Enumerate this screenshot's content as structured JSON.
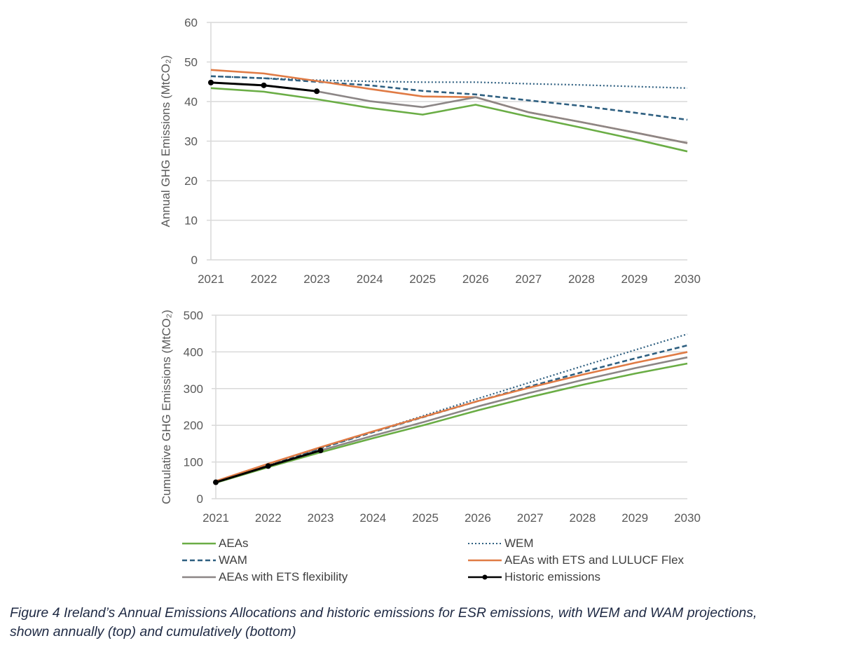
{
  "chart_data": [
    {
      "type": "line",
      "title": "",
      "xlabel": "",
      "ylabel": "Annual GHG Emissions (MtCO₂)",
      "x": [
        "2021",
        "2022",
        "2023",
        "2024",
        "2025",
        "2026",
        "2027",
        "2028",
        "2029",
        "2030"
      ],
      "ylim": [
        0,
        60
      ],
      "yticks": [
        "0",
        "10",
        "20",
        "30",
        "40",
        "50",
        "60"
      ],
      "grid": true,
      "series": [
        {
          "key": "aeas",
          "name": "AEAs",
          "values": [
            43.4,
            42.5,
            40.6,
            38.4,
            36.7,
            39.2,
            36.2,
            33.4,
            30.5,
            27.4
          ]
        },
        {
          "key": "wem",
          "name": "WEM",
          "values": [
            46.4,
            45.9,
            45.4,
            45.1,
            44.9,
            44.9,
            44.5,
            44.2,
            43.8,
            43.4
          ]
        },
        {
          "key": "wam",
          "name": "WAM",
          "values": [
            46.4,
            45.9,
            45.0,
            44.1,
            42.7,
            41.8,
            40.3,
            38.9,
            37.2,
            35.4
          ]
        },
        {
          "key": "aeas_ets_lulucf",
          "name": "AEAs with ETS and LULUCF Flex",
          "values": [
            48.0,
            47.1,
            45.2,
            43.2,
            41.3,
            41.1,
            37.3,
            34.8,
            32.2,
            29.5
          ]
        },
        {
          "key": "aeas_ets",
          "name": "AEAs with ETS flexibility",
          "values": [
            44.8,
            44.1,
            42.6,
            40.1,
            38.6,
            41.1,
            37.3,
            34.8,
            32.2,
            29.5
          ]
        },
        {
          "key": "historic",
          "name": "Historic emissions",
          "values": [
            44.8,
            44.1,
            42.6,
            null,
            null,
            null,
            null,
            null,
            null,
            null
          ]
        }
      ]
    },
    {
      "type": "line",
      "title": "",
      "xlabel": "",
      "ylabel": "Cumulative GHG Emissions (MtCO₂)",
      "x": [
        "2021",
        "2022",
        "2023",
        "2024",
        "2025",
        "2026",
        "2027",
        "2028",
        "2029",
        "2030"
      ],
      "ylim": [
        0,
        500
      ],
      "yticks": [
        "0",
        "100",
        "200",
        "300",
        "400",
        "500"
      ],
      "grid": true,
      "series": [
        {
          "key": "aeas",
          "name": "AEAs",
          "values": [
            43.4,
            85.9,
            126.5,
            164.9,
            201.6,
            240.8,
            277.0,
            310.4,
            340.9,
            368.3
          ]
        },
        {
          "key": "wem",
          "name": "WEM",
          "values": [
            46.4,
            92.3,
            137.7,
            182.8,
            227.7,
            272.6,
            317.1,
            361.3,
            405.1,
            448.5
          ]
        },
        {
          "key": "wam",
          "name": "WAM",
          "values": [
            46.4,
            92.3,
            137.3,
            181.4,
            224.1,
            265.9,
            306.2,
            345.1,
            382.3,
            417.7
          ]
        },
        {
          "key": "aeas_ets_lulucf",
          "name": "AEAs with ETS and LULUCF Flex",
          "values": [
            48.0,
            95.1,
            140.3,
            183.5,
            224.8,
            265.9,
            303.2,
            338.0,
            370.2,
            399.7
          ]
        },
        {
          "key": "aeas_ets",
          "name": "AEAs with ETS flexibility",
          "values": [
            44.8,
            88.9,
            131.5,
            171.6,
            210.2,
            251.3,
            288.6,
            323.4,
            355.6,
            385.1
          ]
        },
        {
          "key": "historic",
          "name": "Historic emissions",
          "values": [
            44.8,
            88.9,
            131.5,
            null,
            null,
            null,
            null,
            null,
            null,
            null
          ]
        }
      ]
    }
  ],
  "series_styles": {
    "aeas": {
      "color": "#6aad45",
      "dash": "solid",
      "markers": false
    },
    "wem": {
      "color": "#2e5f80",
      "dash": "dotted",
      "markers": false
    },
    "wam": {
      "color": "#2e5f80",
      "dash": "dashed",
      "markers": false
    },
    "aeas_ets_lulucf": {
      "color": "#e07b45",
      "dash": "solid",
      "markers": false
    },
    "aeas_ets": {
      "color": "#8c8686",
      "dash": "solid",
      "markers": false
    },
    "historic": {
      "color": "#000000",
      "dash": "solid",
      "markers": true
    }
  },
  "legend": {
    "placement": "bottom",
    "items": [
      {
        "key": "aeas",
        "label": "AEAs"
      },
      {
        "key": "wem",
        "label": "WEM"
      },
      {
        "key": "wam",
        "label": "WAM"
      },
      {
        "key": "aeas_ets_lulucf",
        "label": "AEAs with ETS and LULUCF Flex"
      },
      {
        "key": "aeas_ets",
        "label": "AEAs with ETS flexibility"
      },
      {
        "key": "historic",
        "label": "Historic emissions"
      }
    ]
  },
  "caption": {
    "line1": "Figure 4  Ireland’s Annual Emissions Allocations and historic emissions for ESR emissions, with WEM and WAM projections,",
    "line2": "shown annually (top) and cumulatively (bottom)"
  }
}
